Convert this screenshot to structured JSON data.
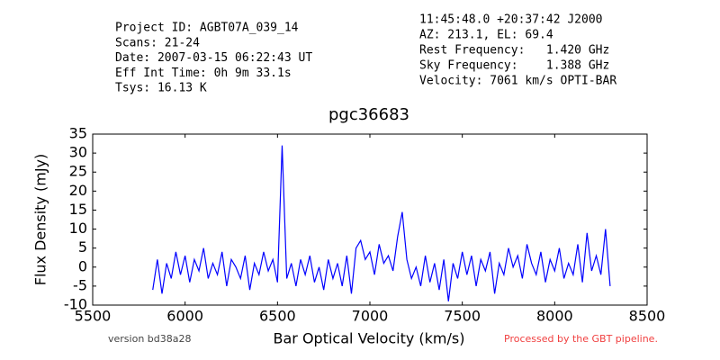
{
  "chart_data": {
    "type": "line",
    "header_left": [
      "Project ID: AGBT07A_039_14",
      "Scans: 21-24",
      "Date: 2007-03-15 06:22:43 UT",
      "Eff Int Time: 0h 9m 33.1s",
      "Tsys: 16.13 K"
    ],
    "header_right": [
      "11:45:48.0 +20:37:42 J2000",
      "AZ: 213.1, EL: 69.4",
      "Rest Frequency:   1.420 GHz",
      "Sky Frequency:    1.388 GHz",
      "Velocity: 7061 km/s OPTI-BAR"
    ],
    "title": "pgc36683",
    "x_label": "Bar Optical Velocity (km/s)",
    "y_label": "Flux Density (mJy)",
    "footer_left": "version bd38a28",
    "footer_right": "Processed by the GBT pipeline.",
    "xlim": [
      5500,
      8500
    ],
    "xticks": [
      5500,
      6000,
      6500,
      7000,
      7500,
      8000,
      8500
    ],
    "ylim": [
      -10,
      35
    ],
    "yticks": [
      -10,
      -5,
      0,
      5,
      10,
      15,
      20,
      25,
      30,
      35
    ],
    "color": "#0000ff",
    "x": [
      5825,
      5850,
      5875,
      5900,
      5925,
      5950,
      5975,
      6000,
      6025,
      6050,
      6075,
      6100,
      6125,
      6150,
      6175,
      6200,
      6225,
      6250,
      6275,
      6300,
      6325,
      6350,
      6375,
      6400,
      6425,
      6450,
      6475,
      6500,
      6525,
      6550,
      6575,
      6600,
      6625,
      6650,
      6675,
      6700,
      6725,
      6750,
      6775,
      6800,
      6825,
      6850,
      6875,
      6900,
      6925,
      6950,
      6975,
      7000,
      7025,
      7050,
      7075,
      7100,
      7125,
      7150,
      7175,
      7200,
      7225,
      7250,
      7275,
      7300,
      7325,
      7350,
      7375,
      7400,
      7425,
      7450,
      7475,
      7500,
      7525,
      7550,
      7575,
      7600,
      7625,
      7650,
      7675,
      7700,
      7725,
      7750,
      7775,
      7800,
      7825,
      7850,
      7875,
      7900,
      7925,
      7950,
      7975,
      8000,
      8025,
      8050,
      8075,
      8100,
      8125,
      8150,
      8175,
      8200,
      8225,
      8250,
      8275,
      8300
    ],
    "values": [
      -6,
      2,
      -7,
      1,
      -3,
      4,
      -2,
      3,
      -4,
      2,
      -1,
      5,
      -3,
      1,
      -2,
      4,
      -5,
      2,
      0,
      -3,
      3,
      -6,
      1,
      -2,
      4,
      -1,
      2,
      -4,
      32,
      -3,
      1,
      -5,
      2,
      -2,
      3,
      -4,
      0,
      -6,
      2,
      -3,
      1,
      -5,
      3,
      -7,
      5,
      7,
      2,
      4,
      -2,
      6,
      1,
      3,
      -1,
      8,
      14.5,
      2,
      -3,
      0,
      -5,
      3,
      -4,
      1,
      -6,
      2,
      -9,
      1,
      -3,
      4,
      -2,
      3,
      -5,
      2,
      -1,
      4,
      -7,
      1,
      -2,
      5,
      0,
      3,
      -3,
      6,
      1,
      -2,
      4,
      -4,
      2,
      -1,
      5,
      -3,
      1,
      -2,
      6,
      -4,
      9,
      -1,
      3,
      -2,
      10,
      -5
    ]
  }
}
